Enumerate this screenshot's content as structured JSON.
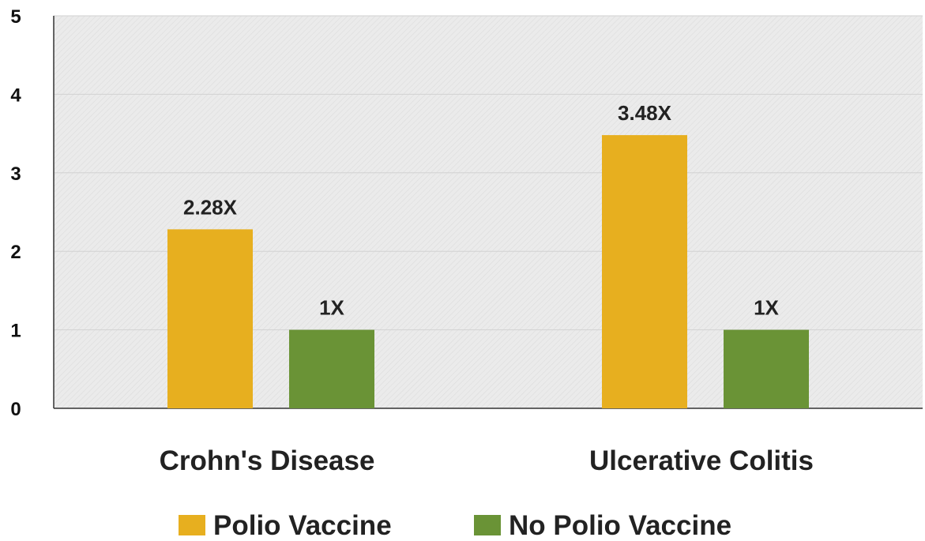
{
  "chart_data": {
    "type": "bar",
    "categories": [
      "Crohn's Disease",
      "Ulcerative Colitis"
    ],
    "series": [
      {
        "name": "Polio Vaccine",
        "values": [
          2.28,
          3.48
        ],
        "labels": [
          "2.28X",
          "3.48X"
        ],
        "color": "#E7AF1F"
      },
      {
        "name": "No Polio Vaccine",
        "values": [
          1,
          1
        ],
        "labels": [
          "1X",
          "1X"
        ],
        "color": "#6A9336"
      }
    ],
    "yticks": [
      "0",
      "1",
      "2",
      "3",
      "4",
      "5"
    ],
    "ylim": [
      0,
      5
    ],
    "grid": true,
    "legend_position": "bottom",
    "plot_background": "#EBEBEB",
    "title": "",
    "xlabel": "",
    "ylabel": ""
  }
}
